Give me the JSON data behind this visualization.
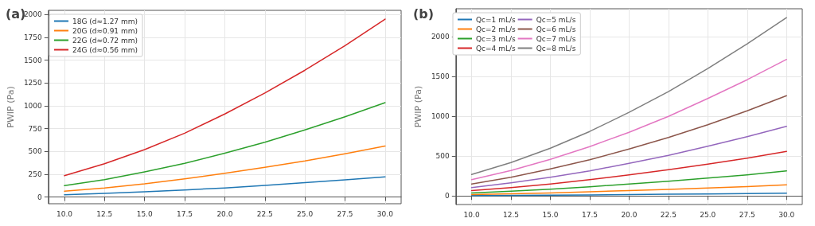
{
  "chart_data": [
    {
      "type": "line",
      "title": "(a)",
      "ylabel": "PWIP (Pa)",
      "x": [
        10,
        12.5,
        15,
        17.5,
        20,
        22.5,
        25,
        27.5,
        30
      ],
      "series": [
        {
          "name": "18G (d≈1.27 mm)",
          "color": "#1f77b4",
          "values": [
            25,
            40,
            58,
            78,
            100,
            128,
            158,
            188,
            222
          ]
        },
        {
          "name": "20G (d≈0.91 mm)",
          "color": "#ff7f0e",
          "values": [
            65,
            100,
            145,
            200,
            260,
            325,
            395,
            475,
            560
          ]
        },
        {
          "name": "22G (d≈0.72 mm)",
          "color": "#2ca02c",
          "values": [
            125,
            190,
            275,
            370,
            480,
            600,
            735,
            880,
            1035
          ]
        },
        {
          "name": "24G (d≈0.56 mm)",
          "color": "#d62728",
          "values": [
            235,
            365,
            520,
            700,
            910,
            1140,
            1390,
            1660,
            1950
          ]
        }
      ],
      "xlim": [
        9,
        31
      ],
      "xticks": [
        {
          "value": 10,
          "label": "10.0"
        },
        {
          "value": 12.5,
          "label": "12.5"
        },
        {
          "value": 15,
          "label": "15.0"
        },
        {
          "value": 17.5,
          "label": "17.5"
        },
        {
          "value": 20,
          "label": "20.0"
        },
        {
          "value": 22.5,
          "label": "22.5"
        },
        {
          "value": 25,
          "label": "25.0"
        },
        {
          "value": 27.5,
          "label": "27.5"
        },
        {
          "value": 30,
          "label": "30.0"
        }
      ],
      "ylim": [
        -73,
        2046
      ],
      "yticks": [
        0,
        250,
        500,
        750,
        1000,
        1250,
        1500,
        1750,
        2000
      ],
      "grid": true,
      "legend": "top left",
      "marker": "none",
      "line_style": "solid"
    },
    {
      "type": "line",
      "title": "(b)",
      "ylabel": "PWIP (Pa)",
      "x": [
        10,
        12.5,
        15,
        17.5,
        20,
        22.5,
        25,
        27.5,
        30
      ],
      "series": [
        {
          "name": "Qc=1 mL/s",
          "color": "#1f77b4",
          "values": [
            4,
            7,
            10,
            13,
            17,
            21,
            25,
            30,
            35
          ]
        },
        {
          "name": "Qc=2 mL/s",
          "color": "#ff7f0e",
          "values": [
            17,
            26,
            38,
            52,
            67,
            83,
            100,
            118,
            140
          ]
        },
        {
          "name": "Qc=3 mL/s",
          "color": "#2ca02c",
          "values": [
            38,
            60,
            85,
            115,
            150,
            185,
            225,
            265,
            315
          ]
        },
        {
          "name": "Qc=4 mL/s",
          "color": "#d62728",
          "values": [
            68,
            105,
            150,
            205,
            265,
            330,
            400,
            475,
            560
          ]
        },
        {
          "name": "Qc=5 mL/s",
          "color": "#9467bd",
          "values": [
            105,
            165,
            235,
            315,
            410,
            510,
            625,
            745,
            875
          ]
        },
        {
          "name": "Qc=6 mL/s",
          "color": "#8c564b",
          "values": [
            150,
            235,
            340,
            455,
            590,
            735,
            895,
            1070,
            1260
          ]
        },
        {
          "name": "Qc=7 mL/s",
          "color": "#e377c2",
          "values": [
            205,
            320,
            460,
            620,
            800,
            1000,
            1225,
            1460,
            1715
          ]
        },
        {
          "name": "Qc=8 mL/s",
          "color": "#7f7f7f",
          "values": [
            270,
            420,
            600,
            810,
            1050,
            1310,
            1600,
            1910,
            2240
          ]
        }
      ],
      "xlim": [
        9,
        31
      ],
      "xticks": [
        {
          "value": 10,
          "label": "10.0"
        },
        {
          "value": 12.5,
          "label": "12.5"
        },
        {
          "value": 15,
          "label": "15.0"
        },
        {
          "value": 17.5,
          "label": "17.5"
        },
        {
          "value": 20,
          "label": "20.0"
        },
        {
          "value": 22.5,
          "label": "22.5"
        },
        {
          "value": 25,
          "label": "25.0"
        },
        {
          "value": 27.5,
          "label": "27.5"
        },
        {
          "value": 30,
          "label": "30.0"
        }
      ],
      "ylim": [
        -108,
        2352
      ],
      "yticks": [
        0,
        500,
        1000,
        1500,
        2000
      ],
      "grid": true,
      "legend": "top left",
      "marker": "none",
      "line_style": "solid"
    }
  ]
}
